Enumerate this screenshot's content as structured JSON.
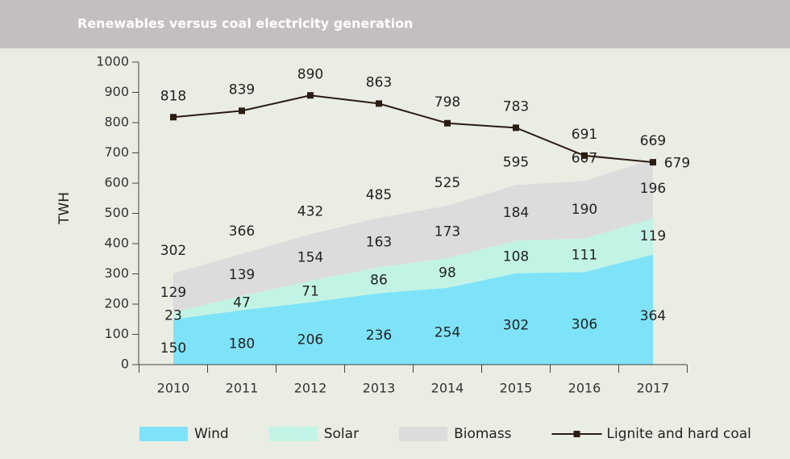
{
  "chart_data": {
    "type": "stacked-area-line",
    "title": "Renewables versus coal electricity generation",
    "y_label": "TWH",
    "categories": [
      "2010",
      "2011",
      "2012",
      "2013",
      "2014",
      "2015",
      "2016",
      "2017"
    ],
    "series": [
      {
        "name": "Wind",
        "color": "#7ee3f8",
        "kind": "area",
        "values": [
          150,
          180,
          206,
          236,
          254,
          302,
          306,
          364
        ]
      },
      {
        "name": "Solar",
        "color": "#c2f4e5",
        "kind": "area",
        "values": [
          23,
          47,
          71,
          86,
          98,
          108,
          111,
          119
        ]
      },
      {
        "name": "Biomass",
        "color": "#dcdcdc",
        "kind": "area",
        "values": [
          129,
          139,
          154,
          163,
          173,
          184,
          190,
          196
        ]
      },
      {
        "name": "Lignite and hard coal",
        "color": "#2a1c12",
        "kind": "line",
        "values": [
          818,
          839,
          890,
          863,
          798,
          783,
          691,
          669
        ]
      }
    ],
    "totals": [
      302,
      366,
      432,
      485,
      525,
      595,
      607,
      679
    ],
    "ylim": [
      0,
      1000
    ],
    "yticks": [
      0,
      100,
      200,
      300,
      400,
      500,
      600,
      700,
      800,
      900,
      1000
    ]
  }
}
